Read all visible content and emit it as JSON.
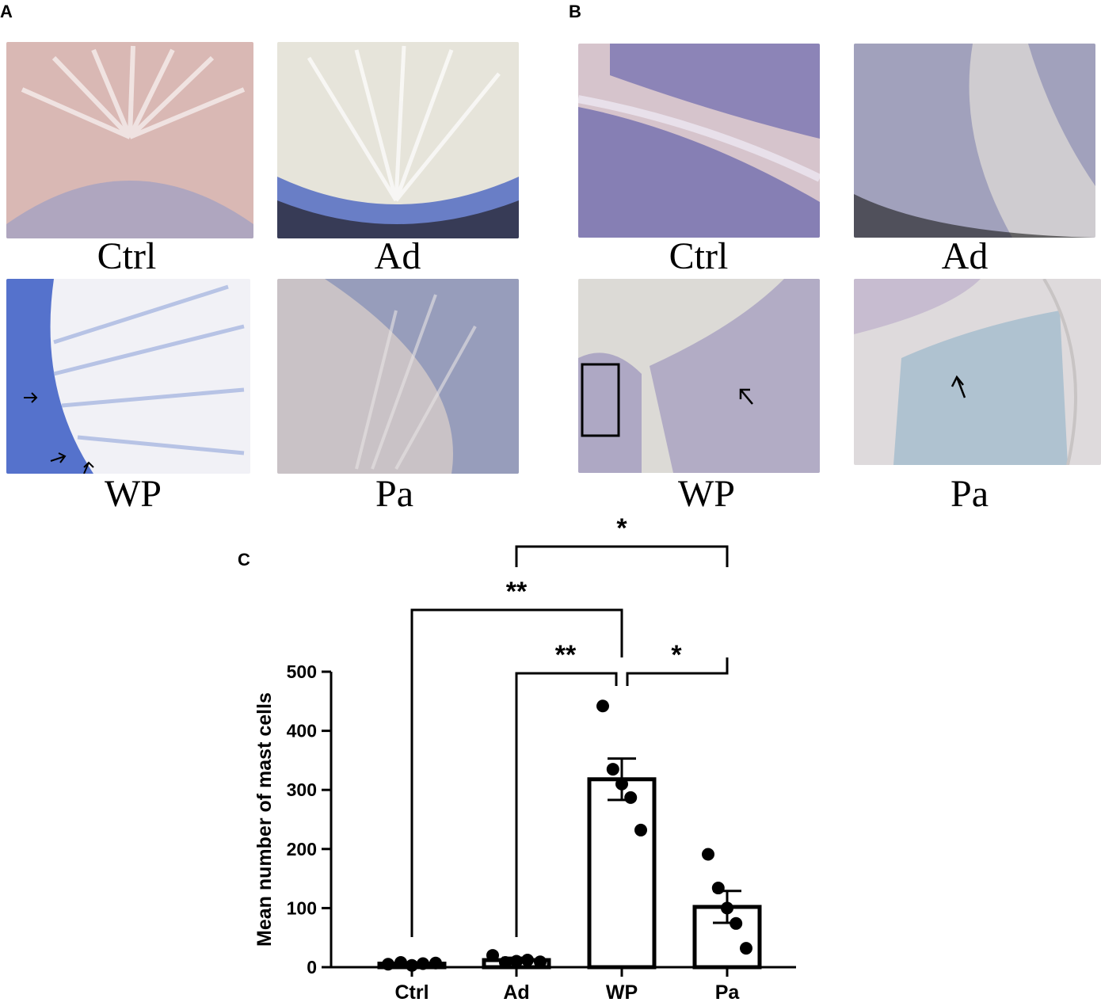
{
  "panels": {
    "a": {
      "letter": "A",
      "labels": [
        "Ctrl",
        "Ad",
        "WP",
        "Pa"
      ]
    },
    "b": {
      "letter": "B",
      "labels": [
        "Ctrl",
        "Ad",
        "WP",
        "Pa"
      ]
    },
    "c": {
      "letter": "C"
    }
  },
  "images": {
    "a": [
      {
        "tint": "#d9b8b4",
        "stain": "#8d97c8"
      },
      {
        "tint": "#e6e4da",
        "stain": "#4a64c0"
      },
      {
        "tint": "#f1f1f6",
        "stain": "#3a5cc4"
      },
      {
        "tint": "#c9c2c6",
        "stain": "#6d7fb3"
      }
    ],
    "b": [
      {
        "tint": "#d6c4cc",
        "stain": "#5a5aa8"
      },
      {
        "tint": "#cfccd0",
        "stain": "#7475a8"
      },
      {
        "tint": "#dcdad6",
        "stain": "#8f87b8"
      },
      {
        "tint": "#dedadc",
        "stain": "#8fb3c8"
      }
    ]
  },
  "chart_data": {
    "type": "bar",
    "categories": [
      "Ctrl",
      "Ad",
      "WP",
      "Pa"
    ],
    "values": [
      6,
      12,
      318,
      102
    ],
    "sem": [
      2,
      4,
      35,
      27
    ],
    "points": [
      [
        5,
        8,
        3,
        6,
        7
      ],
      [
        20,
        8,
        10,
        12,
        9
      ],
      [
        442,
        335,
        310,
        287,
        232
      ],
      [
        191,
        134,
        100,
        74,
        32
      ]
    ],
    "ylabel": "Mean number of mast cells",
    "xlabel": "",
    "ylim": [
      0,
      500
    ],
    "yticks": [
      0,
      100,
      200,
      300,
      400,
      500
    ],
    "significance": [
      {
        "from": "Ctrl",
        "to": "WP",
        "label": "**"
      },
      {
        "from": "Ad",
        "to": "WP",
        "label": "**"
      },
      {
        "from": "WP",
        "to": "Pa",
        "label": "*"
      },
      {
        "from": "Ad",
        "to": "Pa",
        "label": "*"
      }
    ],
    "bar_color": "#ffffff",
    "edge_color": "#000000"
  }
}
